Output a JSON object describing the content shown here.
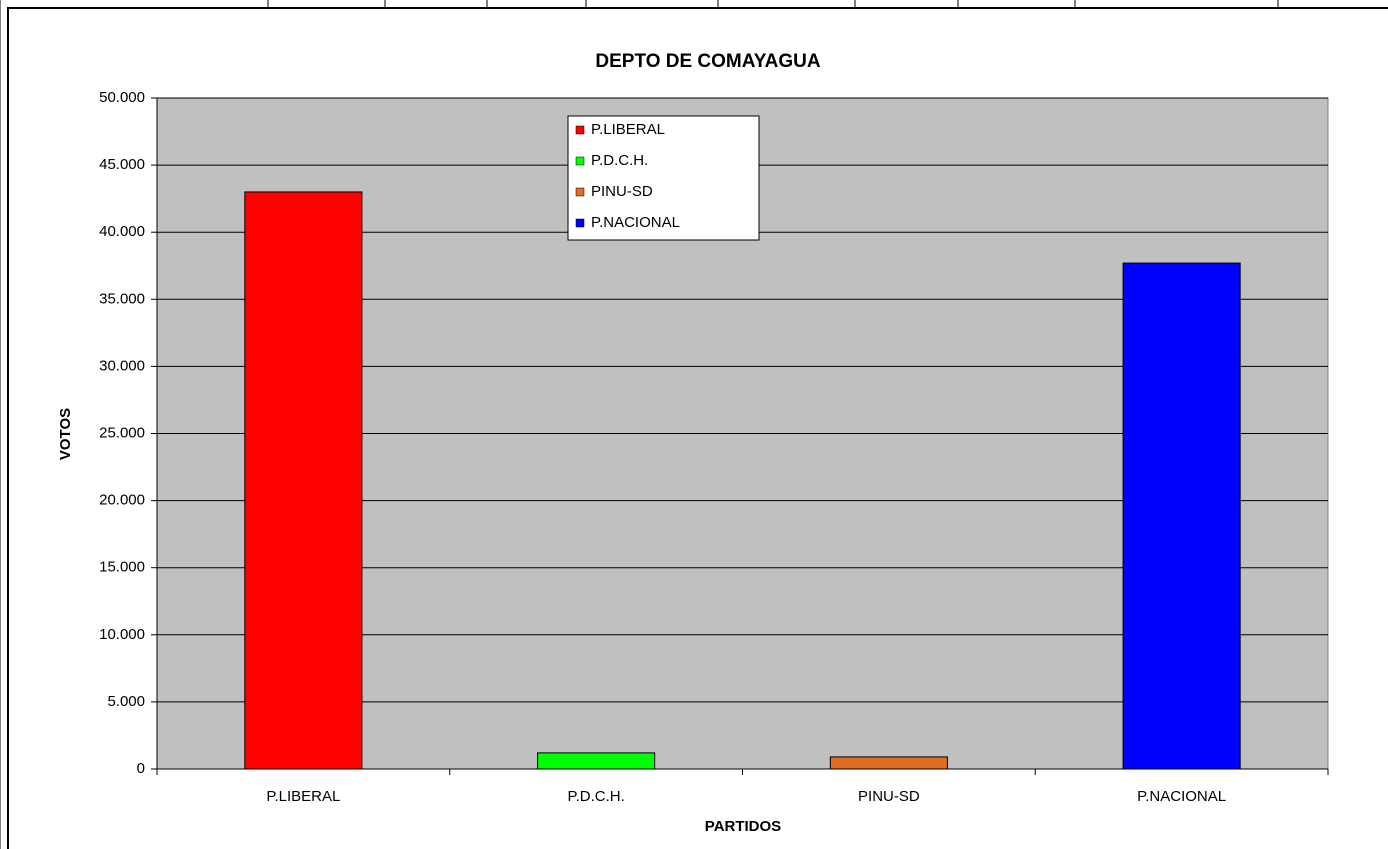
{
  "chart_data": {
    "type": "bar",
    "title": "DEPTO DE COMAYAGUA",
    "x_label": "PARTIDOS",
    "y_label": "VOTOS",
    "categories": [
      "P.LIBERAL",
      "P.D.C.H.",
      "PINU-SD",
      "P.NACIONAL"
    ],
    "values": [
      43000,
      1200,
      900,
      37700
    ],
    "colors": [
      "#ff0000",
      "#00ff00",
      "#e06c20",
      "#0000ff"
    ],
    "ylim": [
      0,
      50000
    ],
    "yticks": [
      0,
      {
        "value": 5000,
        "label": "5.000"
      },
      {
        "value": 10000,
        "label": "10.000"
      },
      {
        "value": 15000,
        "label": "15.000"
      },
      {
        "value": 20000,
        "label": "20.000"
      },
      {
        "value": 25000,
        "label": "25.000"
      },
      {
        "value": 30000,
        "label": "30.000"
      },
      {
        "value": 35000,
        "label": "35.000"
      },
      {
        "value": 40000,
        "label": "40.000"
      },
      {
        "value": 45000,
        "label": "45.000"
      },
      {
        "value": 50000,
        "label": "50.000"
      }
    ],
    "grid": true,
    "legend": "top"
  }
}
